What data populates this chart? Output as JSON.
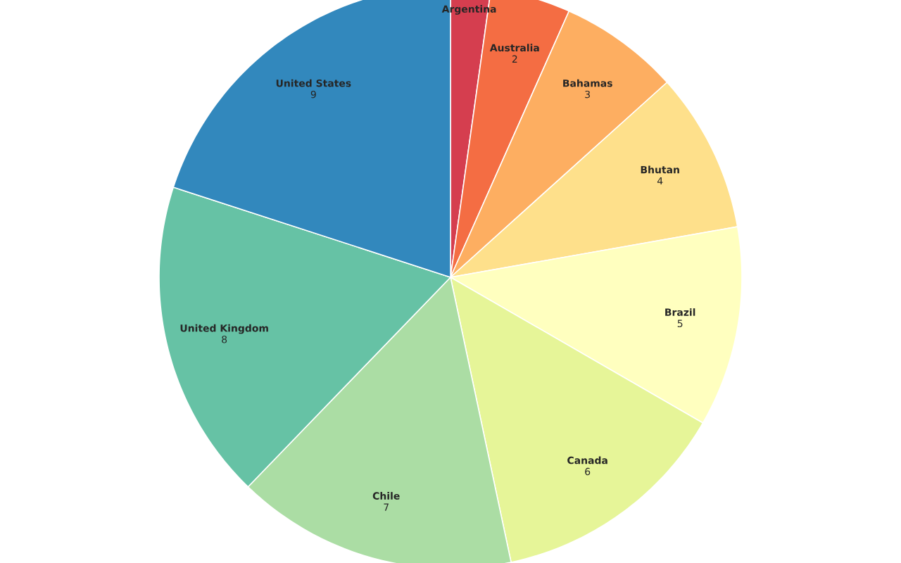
{
  "chart_data": {
    "type": "pie",
    "categories": [
      "Argentina",
      "Australia",
      "Bahamas",
      "Bhutan",
      "Brazil",
      "Canada",
      "Chile",
      "United Kingdom",
      "United States"
    ],
    "values": [
      1,
      2,
      3,
      4,
      5,
      6,
      7,
      8,
      9
    ],
    "colors": [
      "#d53e4f",
      "#f46d43",
      "#fdae61",
      "#fee08b",
      "#ffffbf",
      "#e6f598",
      "#abdda4",
      "#66c2a5",
      "#3288bd"
    ],
    "value_labels": [
      null,
      "2",
      "3",
      "4",
      "5",
      "6",
      "7",
      "8",
      "9"
    ]
  }
}
